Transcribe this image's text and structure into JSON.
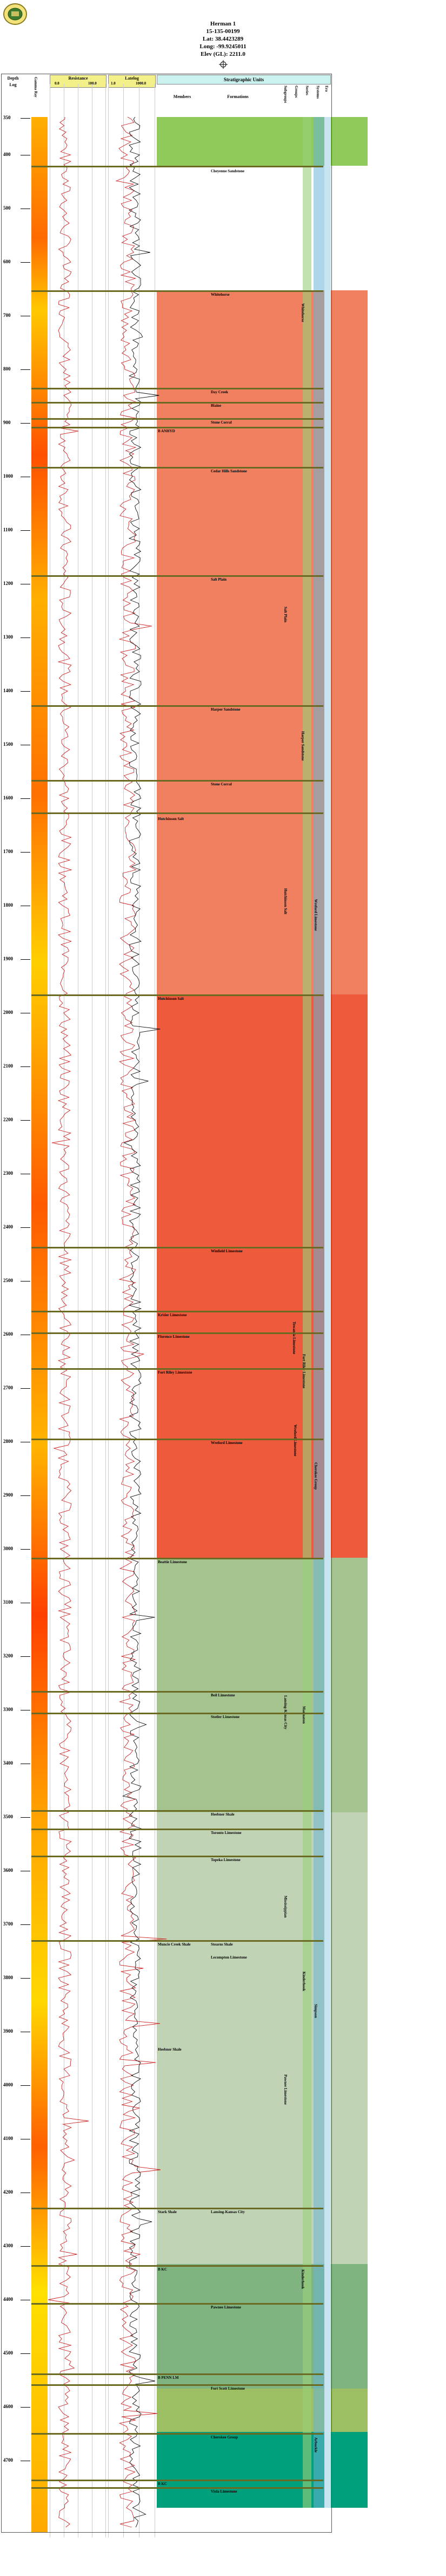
{
  "header": {
    "well_name": "Herman 1",
    "api": "15-135-00199",
    "lat": "Lat: 38.4423289",
    "long": "Long: -99.9245011",
    "elev": "Elev (GL): 2211.0",
    "well_symbol": "dry-hole"
  },
  "columns": {
    "depth": "Depth",
    "log": "Log",
    "gamma": "Gamma Ray",
    "resistance": "Resistance",
    "res_scale_left": "0.0",
    "res_scale_right": "100.0",
    "latelog": "Latelog",
    "lat_scale_left": "1.0",
    "lat_scale_right": "1000.0",
    "strat_title": "Stratigraphic Units",
    "members": "Members",
    "formations": "Formations",
    "subgroups": "Subgroups",
    "groups": "Groups",
    "series": "Series",
    "systems": "Systems",
    "eras": "Era"
  },
  "depths": [
    "350",
    "400",
    "500",
    "600",
    "700",
    "800",
    "900",
    "1000",
    "1100",
    "1200",
    "1300",
    "1400",
    "1500",
    "1600",
    "1700",
    "1800",
    "1900",
    "2000",
    "2100",
    "2200",
    "2300",
    "2400",
    "2500",
    "2600",
    "2700",
    "2800",
    "2900",
    "3000",
    "3100",
    "3200",
    "3300",
    "3400",
    "3500",
    "3600",
    "3700",
    "3800",
    "3900",
    "4000",
    "4100",
    "4200",
    "4300",
    "4400",
    "4500",
    "4600",
    "4700"
  ],
  "formations": [
    {
      "name": "Cheyenne Sandstone"
    },
    {
      "name": "Whitehorse"
    },
    {
      "name": "Day Creek"
    },
    {
      "name": "Blaine"
    },
    {
      "name": "Stone Corral"
    },
    {
      "name": "Cedar Hills Sandstone"
    },
    {
      "name": "Salt Plain"
    },
    {
      "name": "Harper Sandstone"
    },
    {
      "name": "Stone Corral"
    },
    {
      "name": "Hutchinson Salt"
    },
    {
      "name": "Wreford Limestone"
    },
    {
      "name": "Winfield Limestone"
    },
    {
      "name": "Towanda Limestone"
    },
    {
      "name": "Fort Riley Limestone"
    },
    {
      "name": "Wreford Limestone"
    },
    {
      "name": "Beil Limestone"
    },
    {
      "name": "Stotler Limestone"
    },
    {
      "name": "Heebner Shale"
    },
    {
      "name": "Toronto Limestone"
    },
    {
      "name": "Lansing-Kansas City"
    },
    {
      "name": "Topeka Limestone"
    },
    {
      "name": "Marmaton"
    },
    {
      "name": "Pawnee Limestone"
    },
    {
      "name": "Fort Scott Limestone"
    },
    {
      "name": "Cherokee Group"
    },
    {
      "name": "Mississippian"
    },
    {
      "name": "Kinderhook"
    },
    {
      "name": "Viola Limestone"
    },
    {
      "name": "Simpson"
    },
    {
      "name": "Arbuckle"
    }
  ],
  "members": [
    {
      "name": "B ANHYD"
    },
    {
      "name": "Hutchinson Salt"
    },
    {
      "name": "Krider Limestone"
    },
    {
      "name": "Florence Limestone"
    },
    {
      "name": "Fort Riley Limestone"
    },
    {
      "name": "Beattie Limestone"
    },
    {
      "name": "Stearns Shale"
    },
    {
      "name": "Beil Limestone"
    },
    {
      "name": "Lecompton Limestone"
    },
    {
      "name": "Oread Limestone"
    },
    {
      "name": "Heebner Shale"
    },
    {
      "name": "Muncie Creek Shale"
    },
    {
      "name": "Stark Shale"
    },
    {
      "name": "B KC"
    },
    {
      "name": "B PENN LM"
    }
  ],
  "colors": {
    "cretaceous": "#8fca5a",
    "permian_upper": "#f08060",
    "permian_lower": "#ee5a3c",
    "pennsylvanian": "#a5c38f",
    "pennsylvanian_light": "#c1d3b5",
    "mississippian": "#7fb37f",
    "ordovician": "#00a07c",
    "marker": "#6b6a23",
    "curve": "#cc2222",
    "systems_band": "#6ab4d6",
    "series_band": "#9ad07a"
  }
}
